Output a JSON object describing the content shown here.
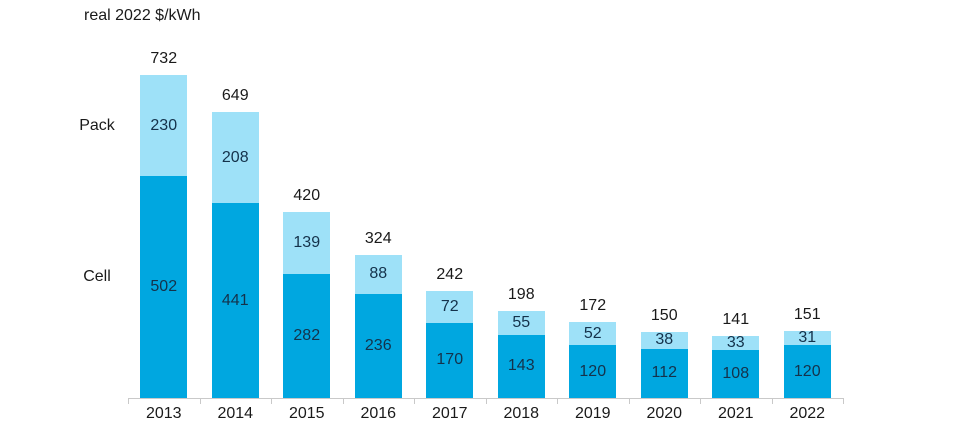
{
  "title": "real 2022 $/kWh",
  "chart_data": {
    "type": "bar",
    "stacked": true,
    "title": "real 2022 $/kWh",
    "categories": [
      "2013",
      "2014",
      "2015",
      "2016",
      "2017",
      "2018",
      "2019",
      "2020",
      "2021",
      "2022"
    ],
    "series": [
      {
        "name": "Cell",
        "color": "#00A7E0",
        "values": [
          502,
          441,
          282,
          236,
          170,
          143,
          120,
          112,
          108,
          120
        ]
      },
      {
        "name": "Pack",
        "color": "#9EE1F8",
        "values": [
          230,
          208,
          139,
          88,
          72,
          55,
          52,
          38,
          33,
          31
        ]
      }
    ],
    "totals": [
      732,
      649,
      420,
      324,
      242,
      198,
      172,
      150,
      141,
      151
    ],
    "ylim": [
      0,
      760
    ],
    "grid": false,
    "legend_position": "left-of-first-bar",
    "value_labels": "inside-segments-and-totals-above"
  },
  "colors": {
    "cell": "#00A7E0",
    "pack": "#9EE1F8",
    "in_bar_text": "#14324B",
    "text": "#1A1A1A",
    "axis": "#C9C9C9",
    "background": "#FFFFFF"
  }
}
